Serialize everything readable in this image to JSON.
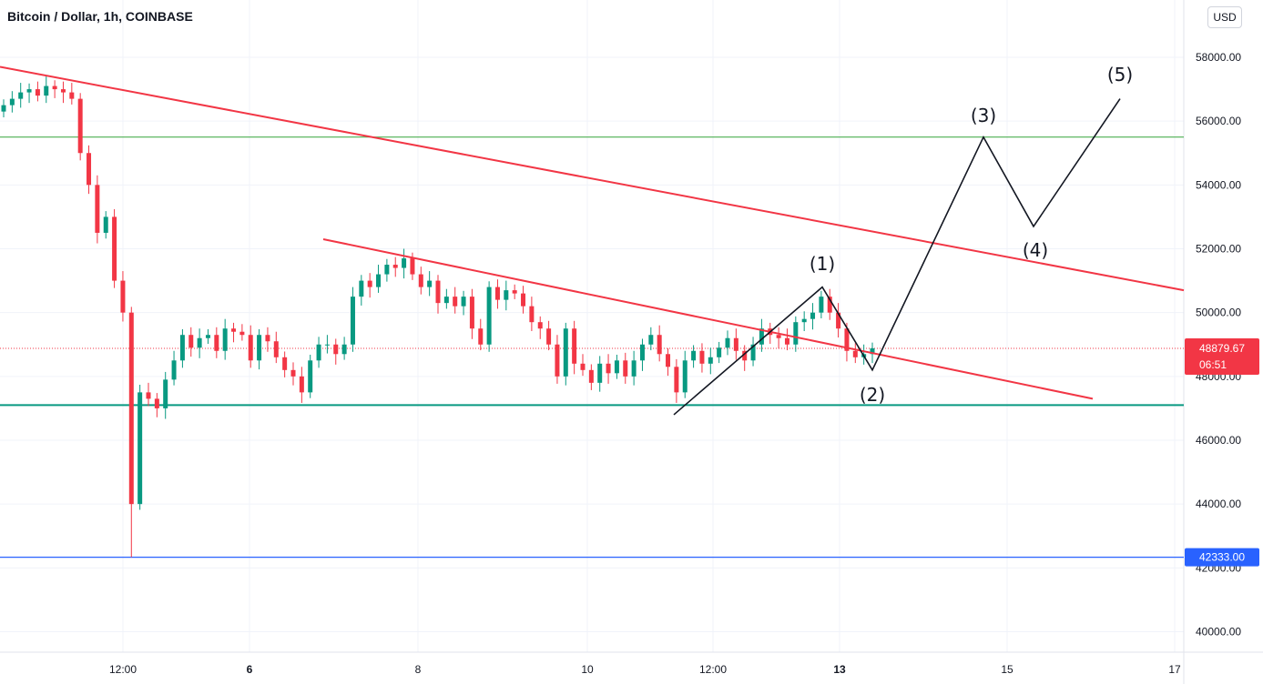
{
  "header": {
    "title": "Bitcoin / Dollar, 1h, COINBASE",
    "currency_button": "USD"
  },
  "chart_data": {
    "type": "candlestick",
    "title": "Bitcoin / Dollar, 1h, COINBASE",
    "y_axis": {
      "ticks": [
        "58000.00",
        "56000.00",
        "54000.00",
        "52000.00",
        "50000.00",
        "48000.00",
        "46000.00",
        "44000.00",
        "42000.00",
        "40000.00"
      ],
      "tick_values": [
        58000,
        56000,
        54000,
        52000,
        50000,
        48000,
        46000,
        44000,
        42000,
        40000
      ],
      "range": [
        39500,
        59500
      ],
      "currency": "USD"
    },
    "x_axis": {
      "ticks": [
        {
          "label": "12:00",
          "bold": false
        },
        {
          "label": "6",
          "bold": true
        },
        {
          "label": "8",
          "bold": false
        },
        {
          "label": "10",
          "bold": false
        },
        {
          "label": "12:00",
          "bold": false
        },
        {
          "label": "13",
          "bold": true
        },
        {
          "label": "15",
          "bold": false
        },
        {
          "label": "17",
          "bold": false
        }
      ]
    },
    "price_levels": [
      {
        "name": "resistance",
        "value": 55500,
        "color": "#4caf50"
      },
      {
        "name": "support",
        "value": 47100,
        "color": "#089981"
      },
      {
        "name": "low",
        "value": 42333,
        "color": "#2962ff",
        "label": "42333.00"
      }
    ],
    "current_price": {
      "value": 48879.67,
      "label": "48879.67",
      "countdown": "06:51",
      "color": "#f23645"
    },
    "trendlines": [
      {
        "name": "upper-channel",
        "from": [
          0,
          57700
        ],
        "to": [
          1300,
          50700
        ],
        "color": "#f23645"
      },
      {
        "name": "lower-channel",
        "from": [
          355,
          52300
        ],
        "to": [
          1200,
          47300
        ],
        "color": "#f23645"
      }
    ],
    "wave_labels": [
      "(1)",
      "(2)",
      "(3)",
      "(4)",
      "(5)"
    ],
    "wave_path": [
      [
        740,
        46800
      ],
      [
        903,
        50800
      ],
      [
        958,
        48200
      ],
      [
        1080,
        55500
      ],
      [
        1135,
        52700
      ],
      [
        1230,
        56700
      ]
    ],
    "close_series": [
      56500,
      56700,
      56900,
      57000,
      56800,
      57100,
      57000,
      56900,
      56700,
      55000,
      54000,
      52500,
      53000,
      51000,
      50000,
      44000,
      47500,
      47300,
      47000,
      47900,
      48500,
      49300,
      48900,
      49200,
      49300,
      48800,
      49500,
      49400,
      49300,
      48500,
      49300,
      49100,
      48600,
      48200,
      48000,
      47500,
      48500,
      49000,
      49000,
      48700,
      49000,
      50500,
      51000,
      50800,
      51200,
      51500,
      51400,
      51700,
      51200,
      50800,
      51000,
      50300,
      50500,
      50200,
      50500,
      49500,
      49000,
      50800,
      50400,
      50700,
      50600,
      50200,
      49700,
      49500,
      49000,
      48000,
      49500,
      48400,
      48200,
      47800,
      48400,
      48100,
      48500,
      48000,
      48500,
      49000,
      49300,
      48700,
      48300,
      47500,
      48500,
      48800,
      48400,
      48600,
      48900,
      49200,
      48800,
      48500,
      49000,
      49500,
      49300,
      49200,
      49000,
      49700,
      49800,
      50000,
      50500,
      50000,
      49500,
      48800,
      48600,
      48700,
      48880
    ]
  }
}
